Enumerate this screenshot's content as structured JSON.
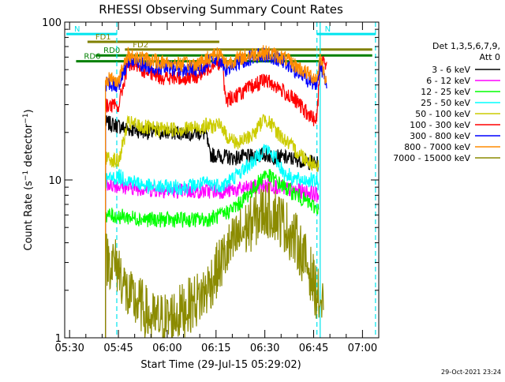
{
  "chart_data": {
    "type": "line",
    "title": "RHESSI Observing Summary Count Rates",
    "xlabel": "Start Time (29-Jul-15 05:29:02)",
    "ylabel": "Count Rate (s⁻¹ detector⁻¹)",
    "ylabel_parts": {
      "pre": "Count Rate (s",
      "sup1": "−1",
      "mid": " detector",
      "sup2": "−1",
      "post": ")"
    },
    "y_scale": "log",
    "xlim_minutes_after_0530": [
      -1.5,
      95
    ],
    "ylim": [
      1,
      100
    ],
    "x_ticks": [
      {
        "m": 0,
        "label": "05:30"
      },
      {
        "m": 15,
        "label": "05:45"
      },
      {
        "m": 30,
        "label": "06:00"
      },
      {
        "m": 45,
        "label": "06:15"
      },
      {
        "m": 60,
        "label": "06:30"
      },
      {
        "m": 75,
        "label": "06:45"
      },
      {
        "m": 90,
        "label": "07:00"
      }
    ],
    "y_ticks": [
      {
        "v": 1,
        "label": "1"
      },
      {
        "v": 10,
        "label": "10"
      },
      {
        "v": 100,
        "label": "100"
      }
    ],
    "legend_header": [
      "Det 1,3,5,6,7,9,",
      "Att 0"
    ],
    "timestamp": "29-Oct-2021 23:24",
    "series": [
      {
        "name": "3 - 6 keV",
        "color": "#000000",
        "points": [
          [
            11,
            23
          ],
          [
            15,
            22
          ],
          [
            18,
            21
          ],
          [
            25,
            20
          ],
          [
            35,
            20
          ],
          [
            40,
            20
          ],
          [
            42,
            19.5
          ],
          [
            43,
            14.5
          ],
          [
            50,
            13.8
          ],
          [
            55,
            14
          ],
          [
            60,
            14.5
          ],
          [
            63,
            14
          ],
          [
            66,
            13.8
          ],
          [
            70,
            13.5
          ],
          [
            74,
            13
          ],
          [
            76.5,
            12.5
          ]
        ]
      },
      {
        "name": "6 - 12 keV",
        "color": "#ff00ff",
        "points": [
          [
            11,
            9.5
          ],
          [
            18,
            9
          ],
          [
            25,
            8.7
          ],
          [
            35,
            8.5
          ],
          [
            42,
            8.5
          ],
          [
            47,
            8.5
          ],
          [
            52,
            8.7
          ],
          [
            57,
            9
          ],
          [
            62,
            9.3
          ],
          [
            66,
            8.8
          ],
          [
            70,
            8.5
          ],
          [
            74,
            8.3
          ],
          [
            76.5,
            8
          ]
        ]
      },
      {
        "name": "12 - 25 keV",
        "color": "#00ff00",
        "points": [
          [
            11,
            6
          ],
          [
            18,
            5.8
          ],
          [
            25,
            5.6
          ],
          [
            35,
            5.6
          ],
          [
            42,
            5.6
          ],
          [
            47,
            6
          ],
          [
            52,
            7
          ],
          [
            57,
            9
          ],
          [
            60,
            11
          ],
          [
            63,
            10
          ],
          [
            66,
            9
          ],
          [
            70,
            8
          ],
          [
            74,
            7
          ],
          [
            76.5,
            6.5
          ]
        ]
      },
      {
        "name": "25 - 50 keV",
        "color": "#00ffff",
        "points": [
          [
            11,
            10
          ],
          [
            15,
            10.5
          ],
          [
            18,
            10
          ],
          [
            25,
            9
          ],
          [
            35,
            9
          ],
          [
            42,
            9.5
          ],
          [
            47,
            9.2
          ],
          [
            52,
            11
          ],
          [
            57,
            13.5
          ],
          [
            60,
            16
          ],
          [
            63,
            14
          ],
          [
            66,
            11
          ],
          [
            70,
            10
          ],
          [
            74,
            10
          ],
          [
            76.5,
            9.5
          ]
        ]
      },
      {
        "name": "50 - 100 keV",
        "color": "#cccc00",
        "points": [
          [
            11,
            14
          ],
          [
            15,
            13
          ],
          [
            18,
            23
          ],
          [
            25,
            21
          ],
          [
            35,
            21
          ],
          [
            42,
            22
          ],
          [
            47,
            22
          ],
          [
            48,
            19
          ],
          [
            52,
            17
          ],
          [
            57,
            20
          ],
          [
            60,
            25
          ],
          [
            63,
            21
          ],
          [
            66,
            18
          ],
          [
            70,
            15
          ],
          [
            74,
            13
          ],
          [
            76.5,
            12
          ]
        ]
      },
      {
        "name": "100 - 300 keV",
        "color": "#ff0000",
        "points": [
          [
            11,
            30
          ],
          [
            15,
            29
          ],
          [
            18,
            55
          ],
          [
            25,
            47
          ],
          [
            30,
            44
          ],
          [
            35,
            44
          ],
          [
            40,
            46
          ],
          [
            45,
            57
          ],
          [
            47,
            52
          ],
          [
            48,
            32
          ],
          [
            52,
            35
          ],
          [
            57,
            40
          ],
          [
            60,
            43
          ],
          [
            63,
            40
          ],
          [
            66,
            36
          ],
          [
            70,
            31
          ],
          [
            74,
            25
          ],
          [
            76,
            24
          ],
          [
            77,
            55
          ],
          [
            79,
            56
          ]
        ]
      },
      {
        "name": "300 - 800 keV",
        "color": "#0000ff",
        "points": [
          [
            11,
            41
          ],
          [
            15,
            40
          ],
          [
            18,
            57
          ],
          [
            25,
            52
          ],
          [
            35,
            50
          ],
          [
            40,
            51
          ],
          [
            45,
            60
          ],
          [
            47,
            56
          ],
          [
            48,
            50
          ],
          [
            52,
            55
          ],
          [
            57,
            61
          ],
          [
            60,
            62
          ],
          [
            63,
            60
          ],
          [
            66,
            56
          ],
          [
            70,
            48
          ],
          [
            74,
            42
          ],
          [
            76,
            40
          ],
          [
            77,
            56
          ],
          [
            79,
            38
          ]
        ]
      },
      {
        "name": "800 - 7000 keV",
        "color": "#ff8c00",
        "points": [
          [
            11,
            44
          ],
          [
            15,
            43
          ],
          [
            18,
            62
          ],
          [
            25,
            57
          ],
          [
            35,
            54
          ],
          [
            40,
            55
          ],
          [
            45,
            64
          ],
          [
            47,
            61
          ],
          [
            48,
            55
          ],
          [
            52,
            59
          ],
          [
            57,
            63
          ],
          [
            60,
            64
          ],
          [
            63,
            62
          ],
          [
            66,
            59
          ],
          [
            70,
            52
          ],
          [
            74,
            46
          ],
          [
            76,
            44
          ],
          [
            77,
            60
          ],
          [
            79,
            42
          ]
        ]
      },
      {
        "name": "7000 - 15000 keV",
        "color": "#8b8b00",
        "points": [
          [
            11,
            3.2
          ],
          [
            15,
            2.8
          ],
          [
            18,
            1.8
          ],
          [
            22,
            1.6
          ],
          [
            25,
            1.3
          ],
          [
            30,
            1.3
          ],
          [
            35,
            1.5
          ],
          [
            40,
            1.8
          ],
          [
            42,
            2
          ],
          [
            45,
            2.6
          ],
          [
            48,
            3.4
          ],
          [
            52,
            4.4
          ],
          [
            57,
            5.6
          ],
          [
            60,
            6.5
          ],
          [
            63,
            6.2
          ],
          [
            66,
            5.2
          ],
          [
            70,
            4
          ],
          [
            74,
            2.6
          ],
          [
            76,
            1.9
          ],
          [
            78,
            1.5
          ]
        ]
      }
    ],
    "flags": [
      {
        "label": "N",
        "color": "#00e5ee",
        "x0": -1,
        "x1": 14.5,
        "y": 84
      },
      {
        "label": "N",
        "color": "#00e5ee",
        "x0": 76,
        "x1": 94,
        "y": 84
      },
      {
        "label": "FD1",
        "color": "#808000",
        "x0": 5.5,
        "x1": 46,
        "y": 75
      },
      {
        "label": "FD2",
        "color": "#808000",
        "x0": 17,
        "x1": 93,
        "y": 67
      },
      {
        "label": "RD0",
        "color": "#008000",
        "x0": 8,
        "x1": 93,
        "y": 61.5
      },
      {
        "label": "RD6",
        "color": "#008000",
        "x0": 2,
        "x1": 78,
        "y": 56.5
      }
    ],
    "vlines": [
      {
        "color": "#00e5ee",
        "style": "dash",
        "m": 14.5
      },
      {
        "color": "#00e5ee",
        "style": "dash",
        "m": 76
      },
      {
        "color": "#00e5ee",
        "style": "dash",
        "m": 94
      },
      {
        "color": "#00e5ee",
        "style": "solid",
        "m": 77
      }
    ]
  }
}
